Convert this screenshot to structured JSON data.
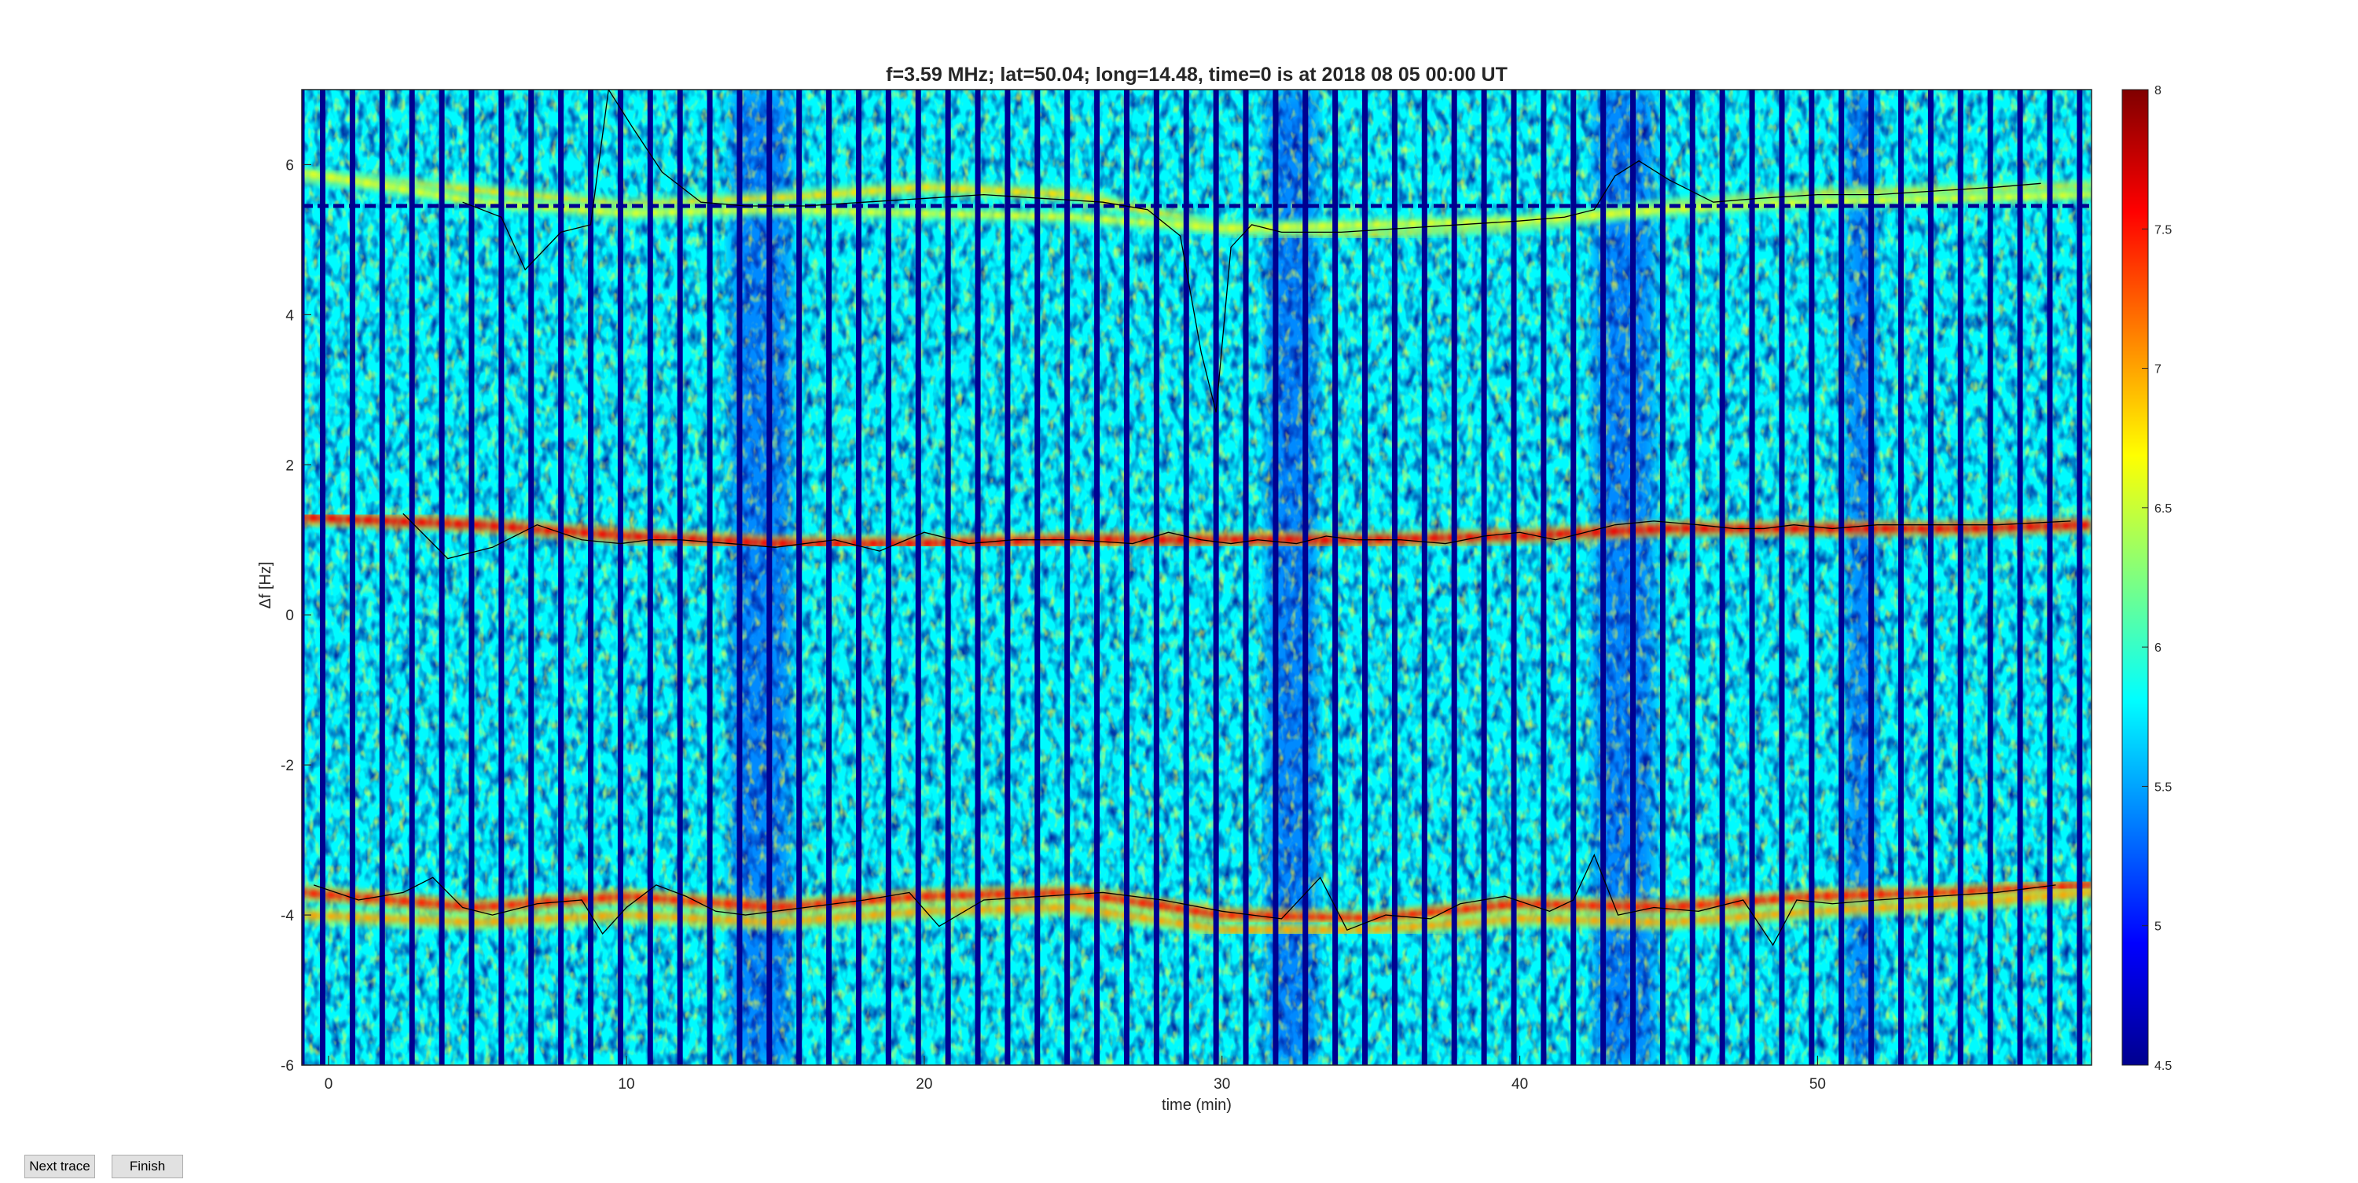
{
  "window": {
    "buttons": {
      "next_trace": "Next trace",
      "finish": "Finish"
    }
  },
  "chart_data": {
    "type": "heatmap",
    "title": "f=3.59 MHz;  lat=50.04; long=14.48, time=0 is at 2018 08 05 00:00 UT",
    "xlabel": "time (min)",
    "ylabel": "Δf [Hz]",
    "xlim": [
      -0.9,
      59.2
    ],
    "ylim": [
      -6,
      7
    ],
    "x_ticks": [
      0,
      10,
      20,
      30,
      40,
      50
    ],
    "y_ticks": [
      -6,
      -4,
      -2,
      0,
      2,
      4,
      6
    ],
    "colorbar": {
      "range": [
        4.5,
        8
      ],
      "ticks": [
        4.5,
        5,
        5.5,
        6,
        6.5,
        7,
        7.5,
        8
      ],
      "colormap": "jet"
    },
    "grid": false,
    "background_level": 5.8,
    "column_separator_min": [
      -0.9,
      -0.2,
      0.8,
      1.8,
      2.8,
      3.8,
      4.8,
      5.8,
      6.8,
      7.8,
      8.8,
      9.8,
      10.8,
      11.8,
      12.8,
      13.8,
      14.8,
      15.8,
      16.8,
      17.8,
      18.8,
      19.8,
      20.8,
      21.8,
      22.8,
      23.8,
      24.8,
      25.8,
      26.8,
      27.8,
      28.8,
      29.8,
      30.8,
      31.8,
      32.8,
      33.8,
      34.8,
      35.8,
      36.8,
      37.8,
      38.8,
      39.8,
      40.8,
      41.8,
      42.8,
      43.8,
      44.8,
      45.8,
      46.8,
      47.8,
      48.8,
      49.8,
      50.8,
      51.8,
      52.8,
      53.8,
      54.8,
      55.8,
      56.8,
      57.8,
      58.8
    ],
    "dark_time_bands_min": [
      [
        13.5,
        15.5
      ],
      [
        31.5,
        33.2
      ],
      [
        42.5,
        44.5
      ],
      [
        51.0,
        52.0
      ]
    ],
    "horizontal_line_hz": 5.45,
    "echo_traces": [
      {
        "name": "",
        "x": [
          -0.9,
          5,
          10,
          15,
          20,
          25,
          30,
          35,
          40,
          45,
          50,
          55,
          59.2
        ],
        "y": [
          1.3,
          1.2,
          1.05,
          0.95,
          0.95,
          1.0,
          1.0,
          1.0,
          1.05,
          1.15,
          1.15,
          1.15,
          1.2
        ],
        "level": 7.6
      },
      {
        "name": "",
        "x": [
          -0.9,
          5,
          10,
          15,
          20,
          25,
          30,
          35,
          40,
          45,
          50,
          55,
          59.2
        ],
        "y": [
          -3.7,
          -3.9,
          -3.75,
          -3.9,
          -3.75,
          -3.7,
          -4.0,
          -4.05,
          -3.85,
          -3.9,
          -3.75,
          -3.7,
          -3.6
        ],
        "level": 7.5
      },
      {
        "name": "",
        "x": [
          -0.9,
          5,
          10,
          15,
          20,
          25,
          30,
          35,
          40,
          45,
          50,
          55,
          59.2
        ],
        "y": [
          -4.0,
          -4.1,
          -4.0,
          -4.1,
          -3.95,
          -3.9,
          -4.2,
          -4.2,
          -4.05,
          -4.1,
          -3.95,
          -3.85,
          -3.7
        ],
        "level": 7.0
      },
      {
        "name": "",
        "x": [
          -0.9,
          5,
          10,
          15,
          20,
          25,
          30,
          35,
          40,
          45,
          50,
          55,
          59.2
        ],
        "y": [
          5.85,
          5.65,
          5.45,
          5.55,
          5.7,
          5.6,
          5.15,
          5.1,
          5.2,
          5.45,
          5.6,
          5.65,
          5.7
        ],
        "level": 6.8
      },
      {
        "name": "",
        "x": [
          -0.9,
          5,
          10,
          15,
          20,
          25,
          30,
          35,
          40,
          45,
          50,
          55,
          59.2
        ],
        "y": [
          5.9,
          5.5,
          5.35,
          5.4,
          5.35,
          5.3,
          5.15,
          5.2,
          5.25,
          5.4,
          5.5,
          5.55,
          5.6
        ],
        "level": 6.6
      }
    ],
    "tracked_line": {
      "x": [
        2.5,
        4,
        5.5,
        7,
        8.5,
        9.8,
        10.8,
        11.8,
        13.5,
        15,
        17,
        18.5,
        20,
        21.5,
        23,
        25,
        27,
        28.2,
        29.3,
        30.3,
        31.2,
        32.5,
        33.5,
        34.5,
        36,
        37.5,
        38.8,
        40,
        41.2,
        42.2,
        43.2,
        44.5,
        46,
        47.2,
        48.2,
        49.2,
        50.5,
        52,
        54,
        56,
        58.5
      ],
      "y": [
        1.35,
        0.75,
        0.9,
        1.2,
        1.0,
        0.95,
        1.0,
        1.0,
        0.95,
        0.9,
        1.0,
        0.85,
        1.1,
        0.95,
        1.0,
        1.0,
        0.95,
        1.1,
        1.0,
        0.95,
        1.0,
        0.95,
        1.05,
        1.0,
        1.0,
        0.95,
        1.05,
        1.1,
        1.0,
        1.1,
        1.2,
        1.25,
        1.2,
        1.15,
        1.15,
        1.2,
        1.15,
        1.2,
        1.2,
        1.2,
        1.25
      ]
    },
    "tracked_line_upper": {
      "x": [
        4.5,
        5.8,
        6.6,
        7.8,
        8.8,
        9.4,
        10.2,
        11.2,
        12.5,
        14,
        16,
        18,
        20,
        22,
        24,
        26,
        27.5,
        28.6,
        29.3,
        29.8,
        30.3,
        31,
        32,
        34,
        36,
        38,
        40,
        41.5,
        42.5,
        43.2,
        44,
        45,
        46.5,
        48,
        50,
        52,
        54,
        56,
        57.5
      ],
      "y": [
        5.5,
        5.3,
        4.6,
        5.1,
        5.2,
        7.0,
        6.5,
        5.9,
        5.5,
        5.45,
        5.45,
        5.5,
        5.55,
        5.6,
        5.55,
        5.5,
        5.4,
        5.05,
        3.5,
        2.7,
        4.9,
        5.2,
        5.1,
        5.1,
        5.15,
        5.2,
        5.25,
        5.3,
        5.4,
        5.85,
        6.05,
        5.8,
        5.5,
        5.55,
        5.6,
        5.6,
        5.65,
        5.7,
        5.75
      ]
    },
    "tracked_line_lower": {
      "x": [
        -0.5,
        1,
        2.5,
        3.5,
        4.5,
        5.5,
        7,
        8.5,
        9.2,
        10,
        11,
        12,
        13,
        14,
        16,
        18,
        19.5,
        20.5,
        22,
        24,
        26,
        28,
        30,
        32,
        33.3,
        34.2,
        35.5,
        37,
        38,
        39.5,
        41,
        41.8,
        42.5,
        43.3,
        44.5,
        46,
        47.5,
        48.5,
        49.3,
        50.5,
        52,
        54,
        56,
        58
      ],
      "y": [
        -3.6,
        -3.8,
        -3.7,
        -3.5,
        -3.9,
        -4.0,
        -3.85,
        -3.8,
        -4.25,
        -3.9,
        -3.6,
        -3.75,
        -3.95,
        -4.0,
        -3.9,
        -3.8,
        -3.7,
        -4.15,
        -3.8,
        -3.75,
        -3.7,
        -3.8,
        -3.95,
        -4.05,
        -3.5,
        -4.2,
        -4.0,
        -4.05,
        -3.85,
        -3.75,
        -3.95,
        -3.8,
        -3.2,
        -4.0,
        -3.9,
        -3.95,
        -3.8,
        -4.4,
        -3.8,
        -3.85,
        -3.8,
        -3.75,
        -3.7,
        -3.6
      ]
    }
  }
}
